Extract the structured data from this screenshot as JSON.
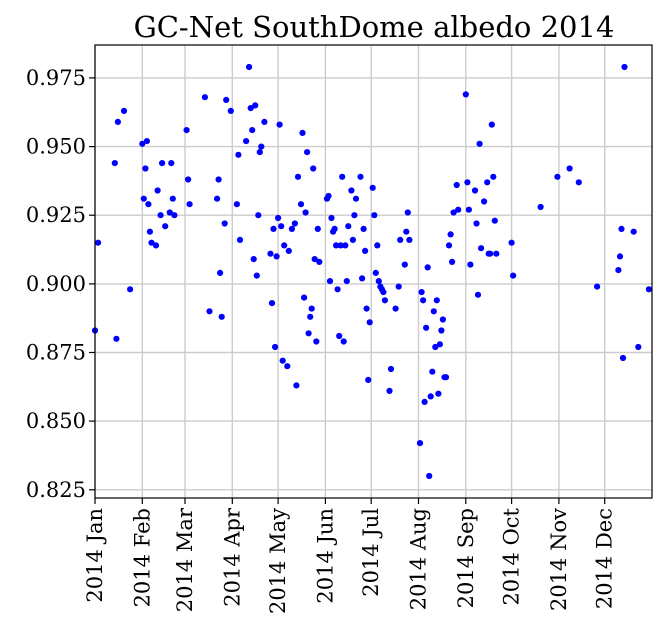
{
  "chart_data": {
    "type": "scatter",
    "title": "GC-Net SouthDome albedo 2014",
    "xlabel": "",
    "ylabel": "",
    "xlim": [
      "2014-01-01",
      "2014-12-31"
    ],
    "ylim": [
      0.822,
      0.987
    ],
    "grid": true,
    "yticks": [
      0.825,
      0.85,
      0.875,
      0.9,
      0.925,
      0.95,
      0.975
    ],
    "ytick_labels": [
      "0.825",
      "0.850",
      "0.875",
      "0.900",
      "0.925",
      "0.950",
      "0.975"
    ],
    "xtick_dates": [
      "2014-01-01",
      "2014-02-01",
      "2014-03-01",
      "2014-04-01",
      "2014-05-01",
      "2014-06-01",
      "2014-07-01",
      "2014-08-01",
      "2014-09-01",
      "2014-10-01",
      "2014-11-01",
      "2014-12-01"
    ],
    "xtick_labels": [
      "2014 Jan",
      "2014 Feb",
      "2014 Mar",
      "2014 Apr",
      "2014 May",
      "2014 Jun",
      "2014 Jul",
      "2014 Aug",
      "2014 Sep",
      "2014 Oct",
      "2014 Nov",
      "2014 Dec"
    ],
    "marker_color": "#0000ff",
    "series": [
      {
        "points": [
          [
            "2014-01-01",
            0.883
          ],
          [
            "2014-01-03",
            0.915
          ],
          [
            "2014-01-14",
            0.944
          ],
          [
            "2014-01-15",
            0.88
          ],
          [
            "2014-01-16",
            0.959
          ],
          [
            "2014-01-20",
            0.963
          ],
          [
            "2014-01-24",
            0.898
          ],
          [
            "2014-02-01",
            0.951
          ],
          [
            "2014-02-02",
            0.931
          ],
          [
            "2014-02-03",
            0.942
          ],
          [
            "2014-02-04",
            0.952
          ],
          [
            "2014-02-05",
            0.929
          ],
          [
            "2014-02-06",
            0.919
          ],
          [
            "2014-02-07",
            0.915
          ],
          [
            "2014-02-10",
            0.914
          ],
          [
            "2014-02-11",
            0.934
          ],
          [
            "2014-02-13",
            0.925
          ],
          [
            "2014-02-14",
            0.944
          ],
          [
            "2014-02-16",
            0.921
          ],
          [
            "2014-02-19",
            0.926
          ],
          [
            "2014-02-20",
            0.944
          ],
          [
            "2014-02-21",
            0.931
          ],
          [
            "2014-02-22",
            0.925
          ],
          [
            "2014-03-02",
            0.956
          ],
          [
            "2014-03-03",
            0.938
          ],
          [
            "2014-03-04",
            0.929
          ],
          [
            "2014-03-14",
            0.968
          ],
          [
            "2014-03-17",
            0.89
          ],
          [
            "2014-03-22",
            0.931
          ],
          [
            "2014-03-23",
            0.938
          ],
          [
            "2014-03-24",
            0.904
          ],
          [
            "2014-03-25",
            0.888
          ],
          [
            "2014-03-27",
            0.922
          ],
          [
            "2014-03-28",
            0.967
          ],
          [
            "2014-03-31",
            0.963
          ],
          [
            "2014-04-04",
            0.929
          ],
          [
            "2014-04-05",
            0.947
          ],
          [
            "2014-04-06",
            0.916
          ],
          [
            "2014-04-10",
            0.952
          ],
          [
            "2014-04-12",
            0.979
          ],
          [
            "2014-04-13",
            0.964
          ],
          [
            "2014-04-14",
            0.956
          ],
          [
            "2014-04-15",
            0.909
          ],
          [
            "2014-04-16",
            0.965
          ],
          [
            "2014-04-17",
            0.903
          ],
          [
            "2014-04-18",
            0.925
          ],
          [
            "2014-04-19",
            0.948
          ],
          [
            "2014-04-20",
            0.95
          ],
          [
            "2014-04-22",
            0.959
          ],
          [
            "2014-04-26",
            0.911
          ],
          [
            "2014-04-27",
            0.893
          ],
          [
            "2014-04-28",
            0.92
          ],
          [
            "2014-04-29",
            0.877
          ],
          [
            "2014-04-30",
            0.91
          ],
          [
            "2014-05-01",
            0.924
          ],
          [
            "2014-05-02",
            0.958
          ],
          [
            "2014-05-03",
            0.921
          ],
          [
            "2014-05-04",
            0.872
          ],
          [
            "2014-05-05",
            0.914
          ],
          [
            "2014-05-07",
            0.87
          ],
          [
            "2014-05-08",
            0.912
          ],
          [
            "2014-05-10",
            0.92
          ],
          [
            "2014-05-12",
            0.922
          ],
          [
            "2014-05-13",
            0.863
          ],
          [
            "2014-05-14",
            0.939
          ],
          [
            "2014-05-16",
            0.929
          ],
          [
            "2014-05-17",
            0.955
          ],
          [
            "2014-05-18",
            0.895
          ],
          [
            "2014-05-19",
            0.926
          ],
          [
            "2014-05-20",
            0.948
          ],
          [
            "2014-05-21",
            0.882
          ],
          [
            "2014-05-22",
            0.888
          ],
          [
            "2014-05-23",
            0.891
          ],
          [
            "2014-05-24",
            0.942
          ],
          [
            "2014-05-25",
            0.909
          ],
          [
            "2014-05-26",
            0.879
          ],
          [
            "2014-05-27",
            0.92
          ],
          [
            "2014-05-28",
            0.908
          ],
          [
            "2014-06-02",
            0.931
          ],
          [
            "2014-06-03",
            0.932
          ],
          [
            "2014-06-04",
            0.901
          ],
          [
            "2014-06-05",
            0.924
          ],
          [
            "2014-06-06",
            0.919
          ],
          [
            "2014-06-07",
            0.92
          ],
          [
            "2014-06-08",
            0.914
          ],
          [
            "2014-06-09",
            0.898
          ],
          [
            "2014-06-10",
            0.881
          ],
          [
            "2014-06-11",
            0.914
          ],
          [
            "2014-06-12",
            0.939
          ],
          [
            "2014-06-13",
            0.879
          ],
          [
            "2014-06-14",
            0.914
          ],
          [
            "2014-06-15",
            0.901
          ],
          [
            "2014-06-16",
            0.921
          ],
          [
            "2014-06-18",
            0.934
          ],
          [
            "2014-06-19",
            0.916
          ],
          [
            "2014-06-20",
            0.925
          ],
          [
            "2014-06-21",
            0.931
          ],
          [
            "2014-06-24",
            0.939
          ],
          [
            "2014-06-25",
            0.902
          ],
          [
            "2014-06-26",
            0.92
          ],
          [
            "2014-06-27",
            0.912
          ],
          [
            "2014-06-28",
            0.891
          ],
          [
            "2014-06-29",
            0.865
          ],
          [
            "2014-06-30",
            0.886
          ],
          [
            "2014-07-02",
            0.935
          ],
          [
            "2014-07-03",
            0.925
          ],
          [
            "2014-07-04",
            0.904
          ],
          [
            "2014-07-05",
            0.914
          ],
          [
            "2014-07-06",
            0.901
          ],
          [
            "2014-07-07",
            0.899
          ],
          [
            "2014-07-08",
            0.898
          ],
          [
            "2014-07-09",
            0.897
          ],
          [
            "2014-07-10",
            0.894
          ],
          [
            "2014-07-13",
            0.861
          ],
          [
            "2014-07-14",
            0.869
          ],
          [
            "2014-07-17",
            0.891
          ],
          [
            "2014-07-19",
            0.899
          ],
          [
            "2014-07-20",
            0.916
          ],
          [
            "2014-07-23",
            0.907
          ],
          [
            "2014-07-24",
            0.919
          ],
          [
            "2014-07-25",
            0.926
          ],
          [
            "2014-07-26",
            0.916
          ],
          [
            "2014-08-02",
            0.842
          ],
          [
            "2014-08-03",
            0.897
          ],
          [
            "2014-08-04",
            0.894
          ],
          [
            "2014-08-05",
            0.857
          ],
          [
            "2014-08-06",
            0.884
          ],
          [
            "2014-08-07",
            0.906
          ],
          [
            "2014-08-08",
            0.83
          ],
          [
            "2014-08-09",
            0.859
          ],
          [
            "2014-08-10",
            0.868
          ],
          [
            "2014-08-11",
            0.89
          ],
          [
            "2014-08-12",
            0.877
          ],
          [
            "2014-08-13",
            0.894
          ],
          [
            "2014-08-14",
            0.86
          ],
          [
            "2014-08-15",
            0.878
          ],
          [
            "2014-08-16",
            0.883
          ],
          [
            "2014-08-17",
            0.887
          ],
          [
            "2014-08-18",
            0.866
          ],
          [
            "2014-08-19",
            0.866
          ],
          [
            "2014-08-21",
            0.914
          ],
          [
            "2014-08-22",
            0.918
          ],
          [
            "2014-08-23",
            0.908
          ],
          [
            "2014-08-24",
            0.926
          ],
          [
            "2014-08-26",
            0.936
          ],
          [
            "2014-08-27",
            0.927
          ],
          [
            "2014-09-01",
            0.969
          ],
          [
            "2014-09-02",
            0.937
          ],
          [
            "2014-09-03",
            0.927
          ],
          [
            "2014-09-04",
            0.907
          ],
          [
            "2014-09-07",
            0.934
          ],
          [
            "2014-09-08",
            0.922
          ],
          [
            "2014-09-09",
            0.896
          ],
          [
            "2014-09-10",
            0.951
          ],
          [
            "2014-09-11",
            0.913
          ],
          [
            "2014-09-13",
            0.93
          ],
          [
            "2014-09-15",
            0.937
          ],
          [
            "2014-09-16",
            0.911
          ],
          [
            "2014-09-17",
            0.911
          ],
          [
            "2014-09-18",
            0.958
          ],
          [
            "2014-09-19",
            0.939
          ],
          [
            "2014-09-20",
            0.923
          ],
          [
            "2014-09-21",
            0.911
          ],
          [
            "2014-10-01",
            0.915
          ],
          [
            "2014-10-02",
            0.903
          ],
          [
            "2014-10-20",
            0.928
          ],
          [
            "2014-10-31",
            0.939
          ],
          [
            "2014-11-08",
            0.942
          ],
          [
            "2014-11-14",
            0.937
          ],
          [
            "2014-11-26",
            0.899
          ],
          [
            "2014-12-10",
            0.905
          ],
          [
            "2014-12-11",
            0.91
          ],
          [
            "2014-12-12",
            0.92
          ],
          [
            "2014-12-13",
            0.873
          ],
          [
            "2014-12-14",
            0.979
          ],
          [
            "2014-12-20",
            0.919
          ],
          [
            "2014-12-23",
            0.877
          ],
          [
            "2014-12-30",
            0.898
          ]
        ]
      }
    ]
  }
}
